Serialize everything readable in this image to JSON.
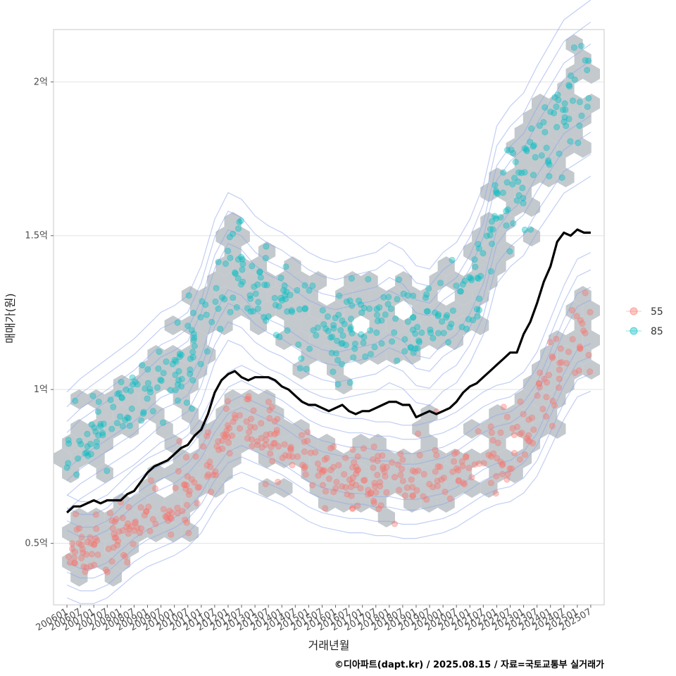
{
  "chart_data": {
    "type": "scatter",
    "xlabel": "거래년월",
    "ylabel": "매매가(원)",
    "caption": "©디아파트(dapt.kr) / 2025.08.15 / 자료=국토교통부 실거래가",
    "x_tick_labels": [
      "200601",
      "200607",
      "200701",
      "200707",
      "200801",
      "200807",
      "200901",
      "200907",
      "201001",
      "201007",
      "201101",
      "201107",
      "201201",
      "201207",
      "201301",
      "201307",
      "201401",
      "201407",
      "201501",
      "201507",
      "201601",
      "201607",
      "201701",
      "201707",
      "201801",
      "201807",
      "201901",
      "201907",
      "202001",
      "202007",
      "202101",
      "202107",
      "202201",
      "202207",
      "202301",
      "202307",
      "202401",
      "202407",
      "202501",
      "202507"
    ],
    "y_ticks": [
      {
        "value": 0.5,
        "label": "0.5억"
      },
      {
        "value": 1.0,
        "label": "1억"
      },
      {
        "value": 1.5,
        "label": "1.5억"
      },
      {
        "value": 2.0,
        "label": "2억"
      }
    ],
    "y_unit": "억",
    "xlim": [
      "2005-07",
      "2026-01"
    ],
    "ylim": [
      0.3,
      2.17
    ],
    "grid": "horizontal",
    "legend_position": "right",
    "series": [
      {
        "name": "55",
        "color": "#F8766D",
        "trend": [
          [
            "2006-01",
            0.49
          ],
          [
            "2006-07",
            0.47
          ],
          [
            "2007-01",
            0.47
          ],
          [
            "2007-07",
            0.49
          ],
          [
            "2008-01",
            0.53
          ],
          [
            "2008-07",
            0.57
          ],
          [
            "2009-01",
            0.6
          ],
          [
            "2009-07",
            0.62
          ],
          [
            "2010-01",
            0.64
          ],
          [
            "2010-07",
            0.67
          ],
          [
            "2011-01",
            0.72
          ],
          [
            "2011-07",
            0.8
          ],
          [
            "2012-01",
            0.86
          ],
          [
            "2012-07",
            0.88
          ],
          [
            "2013-01",
            0.86
          ],
          [
            "2013-07",
            0.84
          ],
          [
            "2014-01",
            0.82
          ],
          [
            "2014-07",
            0.79
          ],
          [
            "2015-01",
            0.76
          ],
          [
            "2015-07",
            0.74
          ],
          [
            "2016-01",
            0.73
          ],
          [
            "2016-07",
            0.72
          ],
          [
            "2017-01",
            0.72
          ],
          [
            "2017-07",
            0.71
          ],
          [
            "2018-01",
            0.71
          ],
          [
            "2018-07",
            0.7
          ],
          [
            "2019-01",
            0.7
          ],
          [
            "2019-07",
            0.71
          ],
          [
            "2020-01",
            0.72
          ],
          [
            "2020-07",
            0.74
          ],
          [
            "2021-01",
            0.77
          ],
          [
            "2021-07",
            0.8
          ],
          [
            "2022-01",
            0.82
          ],
          [
            "2022-07",
            0.83
          ],
          [
            "2023-01",
            0.86
          ],
          [
            "2023-07",
            0.92
          ],
          [
            "2024-01",
            1.02
          ],
          [
            "2024-07",
            1.12
          ],
          [
            "2025-01",
            1.2
          ],
          [
            "2025-07",
            1.22
          ]
        ]
      },
      {
        "name": "85",
        "color": "#00BFC4",
        "trend": [
          [
            "2006-01",
            0.8
          ],
          [
            "2006-07",
            0.84
          ],
          [
            "2007-01",
            0.87
          ],
          [
            "2007-07",
            0.9
          ],
          [
            "2008-01",
            0.93
          ],
          [
            "2008-07",
            0.96
          ],
          [
            "2009-01",
            1.0
          ],
          [
            "2009-07",
            1.04
          ],
          [
            "2010-01",
            1.06
          ],
          [
            "2010-07",
            1.09
          ],
          [
            "2011-01",
            1.18
          ],
          [
            "2011-07",
            1.32
          ],
          [
            "2012-01",
            1.4
          ],
          [
            "2012-07",
            1.38
          ],
          [
            "2013-01",
            1.33
          ],
          [
            "2013-07",
            1.3
          ],
          [
            "2014-01",
            1.28
          ],
          [
            "2014-07",
            1.25
          ],
          [
            "2015-01",
            1.22
          ],
          [
            "2015-07",
            1.2
          ],
          [
            "2016-01",
            1.19
          ],
          [
            "2016-07",
            1.2
          ],
          [
            "2017-01",
            1.21
          ],
          [
            "2017-07",
            1.22
          ],
          [
            "2018-01",
            1.25
          ],
          [
            "2018-07",
            1.23
          ],
          [
            "2019-01",
            1.18
          ],
          [
            "2019-07",
            1.17
          ],
          [
            "2020-01",
            1.22
          ],
          [
            "2020-07",
            1.25
          ],
          [
            "2021-01",
            1.32
          ],
          [
            "2021-07",
            1.42
          ],
          [
            "2022-01",
            1.6
          ],
          [
            "2022-07",
            1.66
          ],
          [
            "2023-01",
            1.7
          ],
          [
            "2023-07",
            1.78
          ],
          [
            "2024-01",
            1.85
          ],
          [
            "2024-07",
            1.92
          ],
          [
            "2025-01",
            1.95
          ],
          [
            "2025-07",
            1.98
          ]
        ]
      }
    ],
    "median_line": {
      "color": "#000000",
      "points": [
        [
          "2006-01",
          0.6
        ],
        [
          "2006-04",
          0.62
        ],
        [
          "2006-07",
          0.62
        ],
        [
          "2006-10",
          0.63
        ],
        [
          "2007-01",
          0.64
        ],
        [
          "2007-04",
          0.63
        ],
        [
          "2007-07",
          0.64
        ],
        [
          "2007-10",
          0.64
        ],
        [
          "2008-01",
          0.64
        ],
        [
          "2008-04",
          0.66
        ],
        [
          "2008-07",
          0.67
        ],
        [
          "2008-10",
          0.7
        ],
        [
          "2009-01",
          0.73
        ],
        [
          "2009-04",
          0.75
        ],
        [
          "2009-07",
          0.76
        ],
        [
          "2009-10",
          0.77
        ],
        [
          "2010-01",
          0.79
        ],
        [
          "2010-04",
          0.81
        ],
        [
          "2010-07",
          0.82
        ],
        [
          "2010-10",
          0.85
        ],
        [
          "2011-01",
          0.87
        ],
        [
          "2011-04",
          0.92
        ],
        [
          "2011-07",
          0.99
        ],
        [
          "2011-10",
          1.03
        ],
        [
          "2012-01",
          1.05
        ],
        [
          "2012-04",
          1.06
        ],
        [
          "2012-07",
          1.04
        ],
        [
          "2012-10",
          1.03
        ],
        [
          "2013-01",
          1.04
        ],
        [
          "2013-04",
          1.04
        ],
        [
          "2013-07",
          1.04
        ],
        [
          "2013-10",
          1.03
        ],
        [
          "2014-01",
          1.01
        ],
        [
          "2014-04",
          1.0
        ],
        [
          "2014-07",
          0.98
        ],
        [
          "2014-10",
          0.96
        ],
        [
          "2015-01",
          0.95
        ],
        [
          "2015-04",
          0.95
        ],
        [
          "2015-07",
          0.94
        ],
        [
          "2015-10",
          0.93
        ],
        [
          "2016-01",
          0.94
        ],
        [
          "2016-04",
          0.95
        ],
        [
          "2016-07",
          0.93
        ],
        [
          "2016-10",
          0.92
        ],
        [
          "2017-01",
          0.93
        ],
        [
          "2017-04",
          0.93
        ],
        [
          "2017-07",
          0.94
        ],
        [
          "2017-10",
          0.95
        ],
        [
          "2018-01",
          0.96
        ],
        [
          "2018-04",
          0.96
        ],
        [
          "2018-07",
          0.95
        ],
        [
          "2018-10",
          0.95
        ],
        [
          "2019-01",
          0.91
        ],
        [
          "2019-04",
          0.92
        ],
        [
          "2019-07",
          0.93
        ],
        [
          "2019-10",
          0.92
        ],
        [
          "2020-01",
          0.93
        ],
        [
          "2020-04",
          0.94
        ],
        [
          "2020-07",
          0.96
        ],
        [
          "2020-10",
          0.99
        ],
        [
          "2021-01",
          1.01
        ],
        [
          "2021-04",
          1.02
        ],
        [
          "2021-07",
          1.04
        ],
        [
          "2021-10",
          1.06
        ],
        [
          "2022-01",
          1.08
        ],
        [
          "2022-04",
          1.1
        ],
        [
          "2022-07",
          1.12
        ],
        [
          "2022-10",
          1.12
        ],
        [
          "2023-01",
          1.18
        ],
        [
          "2023-04",
          1.22
        ],
        [
          "2023-07",
          1.28
        ],
        [
          "2023-10",
          1.35
        ],
        [
          "2024-01",
          1.4
        ],
        [
          "2024-04",
          1.48
        ],
        [
          "2024-07",
          1.51
        ],
        [
          "2024-10",
          1.5
        ],
        [
          "2025-01",
          1.52
        ],
        [
          "2025-04",
          1.51
        ],
        [
          "2025-07",
          1.51
        ]
      ]
    }
  }
}
